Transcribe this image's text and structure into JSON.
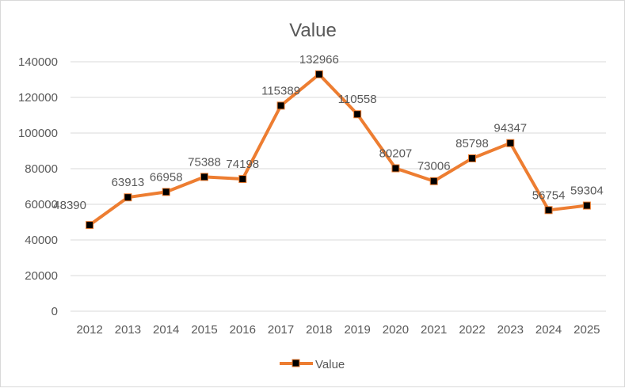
{
  "chart_data": {
    "type": "line",
    "title": "Value",
    "xlabel": "",
    "ylabel": "",
    "categories": [
      "2012",
      "2013",
      "2014",
      "2015",
      "2016",
      "2017",
      "2018",
      "2019",
      "2020",
      "2021",
      "2022",
      "2023",
      "2024",
      "2025"
    ],
    "series": [
      {
        "name": "Value",
        "values": [
          48390,
          63913,
          66958,
          75388,
          74198,
          115389,
          132966,
          110558,
          80207,
          73006,
          85798,
          94347,
          56754,
          59304
        ]
      }
    ],
    "ylim": [
      0,
      140000
    ],
    "yticks": [
      0,
      20000,
      40000,
      60000,
      80000,
      100000,
      120000,
      140000
    ],
    "grid": true,
    "data_labels": true,
    "legend": "bottom",
    "colors": {
      "line": "#ed7d31",
      "marker_fill": "#000000",
      "grid": "#d9d9d9",
      "text": "#595959"
    }
  }
}
